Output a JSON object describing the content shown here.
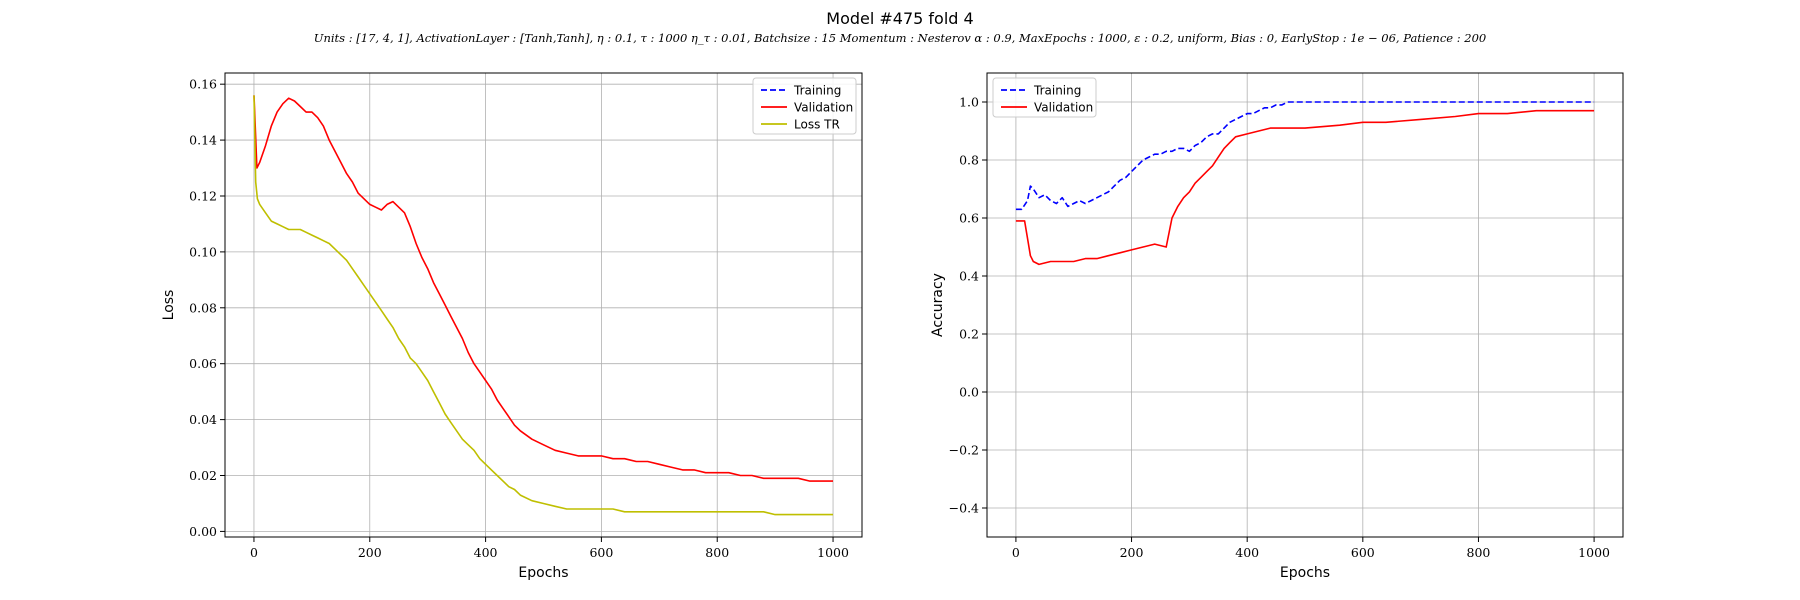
{
  "figure": {
    "title": "Model #475 fold 4",
    "subtitle": "Units : [17, 4, 1], ActivationLayer : [Tanh,Tanh], η : 0.1, τ : 1000 η_τ : 0.01, Batchsize : 15 Momentum : Nesterov α : 0.9, MaxEpochs : 1000, ε : 0.2, uniform, Bias : 0, EarlyStop : 1e − 06, Patience : 200"
  },
  "chart_data": [
    {
      "type": "line",
      "xlabel": "Epochs",
      "ylabel": "Loss",
      "xlim": [
        -50,
        1050
      ],
      "ylim": [
        -0.002,
        0.164
      ],
      "xticks": [
        "0",
        "200",
        "400",
        "600",
        "800",
        "1000"
      ],
      "yticks": [
        "0.00",
        "0.02",
        "0.04",
        "0.06",
        "0.08",
        "0.10",
        "0.12",
        "0.14",
        "0.16"
      ],
      "grid": true,
      "legend_position": "top-right",
      "series": [
        {
          "name": "Training",
          "color": "#0000ff",
          "dash": "dashed",
          "x": [],
          "y": []
        },
        {
          "name": "Validation",
          "color": "#ff0000",
          "dash": "solid",
          "x": [
            0,
            5,
            10,
            20,
            30,
            40,
            50,
            60,
            70,
            80,
            90,
            100,
            110,
            120,
            130,
            140,
            150,
            160,
            170,
            180,
            190,
            200,
            210,
            220,
            230,
            240,
            250,
            260,
            270,
            280,
            290,
            300,
            310,
            320,
            330,
            340,
            350,
            360,
            370,
            380,
            390,
            400,
            410,
            420,
            430,
            440,
            450,
            460,
            480,
            500,
            520,
            540,
            560,
            580,
            600,
            620,
            640,
            660,
            680,
            700,
            720,
            740,
            760,
            780,
            800,
            820,
            840,
            860,
            880,
            900,
            920,
            940,
            960,
            980,
            1000
          ],
          "y": [
            0.156,
            0.13,
            0.132,
            0.138,
            0.145,
            0.15,
            0.153,
            0.155,
            0.154,
            0.152,
            0.15,
            0.15,
            0.148,
            0.145,
            0.14,
            0.136,
            0.132,
            0.128,
            0.125,
            0.121,
            0.119,
            0.117,
            0.116,
            0.115,
            0.117,
            0.118,
            0.116,
            0.114,
            0.109,
            0.103,
            0.098,
            0.094,
            0.089,
            0.085,
            0.081,
            0.077,
            0.073,
            0.069,
            0.064,
            0.06,
            0.057,
            0.054,
            0.051,
            0.047,
            0.044,
            0.041,
            0.038,
            0.036,
            0.033,
            0.031,
            0.029,
            0.028,
            0.027,
            0.027,
            0.027,
            0.026,
            0.026,
            0.025,
            0.025,
            0.024,
            0.023,
            0.022,
            0.022,
            0.021,
            0.021,
            0.021,
            0.02,
            0.02,
            0.019,
            0.019,
            0.019,
            0.019,
            0.018,
            0.018,
            0.018
          ]
        },
        {
          "name": "Loss TR",
          "color": "#bfbf00",
          "dash": "solid",
          "x": [
            0,
            3,
            6,
            10,
            20,
            30,
            40,
            50,
            60,
            70,
            80,
            90,
            100,
            110,
            120,
            130,
            140,
            150,
            160,
            170,
            180,
            190,
            200,
            210,
            220,
            230,
            240,
            250,
            260,
            270,
            280,
            290,
            300,
            310,
            320,
            330,
            340,
            350,
            360,
            370,
            380,
            390,
            400,
            410,
            420,
            430,
            440,
            450,
            460,
            480,
            500,
            520,
            540,
            560,
            580,
            600,
            620,
            640,
            660,
            680,
            700,
            720,
            740,
            760,
            780,
            800,
            820,
            840,
            860,
            880,
            900,
            920,
            940,
            960,
            980,
            1000
          ],
          "y": [
            0.156,
            0.125,
            0.119,
            0.117,
            0.114,
            0.111,
            0.11,
            0.109,
            0.108,
            0.108,
            0.108,
            0.107,
            0.106,
            0.105,
            0.104,
            0.103,
            0.101,
            0.099,
            0.097,
            0.094,
            0.091,
            0.088,
            0.085,
            0.082,
            0.079,
            0.076,
            0.073,
            0.069,
            0.066,
            0.062,
            0.06,
            0.057,
            0.054,
            0.05,
            0.046,
            0.042,
            0.039,
            0.036,
            0.033,
            0.031,
            0.029,
            0.026,
            0.024,
            0.022,
            0.02,
            0.018,
            0.016,
            0.015,
            0.013,
            0.011,
            0.01,
            0.009,
            0.008,
            0.008,
            0.008,
            0.008,
            0.008,
            0.007,
            0.007,
            0.007,
            0.007,
            0.007,
            0.007,
            0.007,
            0.007,
            0.007,
            0.007,
            0.007,
            0.007,
            0.007,
            0.006,
            0.006,
            0.006,
            0.006,
            0.006,
            0.006
          ]
        }
      ]
    },
    {
      "type": "line",
      "xlabel": "Epochs",
      "ylabel": "Accuracy",
      "xlim": [
        -50,
        1050
      ],
      "ylim": [
        -0.5,
        1.1
      ],
      "xticks": [
        "0",
        "200",
        "400",
        "600",
        "800",
        "1000"
      ],
      "yticks": [
        "−0.4",
        "−0.2",
        "0.0",
        "0.2",
        "0.4",
        "0.6",
        "0.8",
        "1.0"
      ],
      "grid": true,
      "legend_position": "top-left",
      "series": [
        {
          "name": "Training",
          "color": "#0000ff",
          "dash": "dashed",
          "x": [
            0,
            10,
            20,
            25,
            30,
            40,
            50,
            60,
            70,
            80,
            90,
            100,
            110,
            120,
            130,
            140,
            150,
            160,
            170,
            180,
            190,
            200,
            210,
            220,
            230,
            240,
            250,
            260,
            270,
            280,
            290,
            300,
            310,
            320,
            330,
            340,
            350,
            360,
            370,
            380,
            390,
            400,
            410,
            420,
            430,
            440,
            450,
            460,
            470,
            480,
            500,
            600,
            700,
            800,
            900,
            1000
          ],
          "y": [
            0.63,
            0.63,
            0.66,
            0.71,
            0.7,
            0.67,
            0.68,
            0.66,
            0.65,
            0.67,
            0.64,
            0.65,
            0.66,
            0.65,
            0.66,
            0.67,
            0.68,
            0.69,
            0.71,
            0.73,
            0.74,
            0.76,
            0.78,
            0.8,
            0.81,
            0.82,
            0.82,
            0.83,
            0.83,
            0.84,
            0.84,
            0.83,
            0.85,
            0.86,
            0.88,
            0.89,
            0.89,
            0.91,
            0.93,
            0.94,
            0.95,
            0.96,
            0.96,
            0.97,
            0.98,
            0.98,
            0.99,
            0.99,
            1.0,
            1.0,
            1.0,
            1.0,
            1.0,
            1.0,
            1.0,
            1.0
          ]
        },
        {
          "name": "Validation",
          "color": "#ff0000",
          "dash": "solid",
          "x": [
            0,
            15,
            20,
            25,
            30,
            40,
            60,
            80,
            100,
            120,
            140,
            160,
            180,
            200,
            220,
            240,
            260,
            265,
            270,
            280,
            290,
            300,
            310,
            320,
            330,
            340,
            350,
            360,
            370,
            380,
            400,
            420,
            440,
            460,
            480,
            500,
            560,
            600,
            640,
            700,
            760,
            800,
            850,
            900,
            1000
          ],
          "y": [
            0.59,
            0.59,
            0.53,
            0.47,
            0.45,
            0.44,
            0.45,
            0.45,
            0.45,
            0.46,
            0.46,
            0.47,
            0.48,
            0.49,
            0.5,
            0.51,
            0.5,
            0.55,
            0.6,
            0.64,
            0.67,
            0.69,
            0.72,
            0.74,
            0.76,
            0.78,
            0.81,
            0.84,
            0.86,
            0.88,
            0.89,
            0.9,
            0.91,
            0.91,
            0.91,
            0.91,
            0.92,
            0.93,
            0.93,
            0.94,
            0.95,
            0.96,
            0.96,
            0.97,
            0.97
          ]
        }
      ]
    }
  ]
}
